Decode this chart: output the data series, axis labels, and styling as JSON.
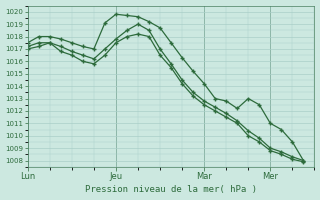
{
  "background_color": "#cce8e0",
  "grid_color": "#aacfc8",
  "line_color": "#2d6b3c",
  "ylabel": "Pression niveau de la mer( hPa )",
  "ylim": [
    1007.5,
    1020.5
  ],
  "yticks": [
    1008,
    1009,
    1010,
    1011,
    1012,
    1013,
    1014,
    1015,
    1016,
    1017,
    1018,
    1019,
    1020
  ],
  "xtick_labels": [
    "Lun",
    "Jeu",
    "Mar",
    "Mer"
  ],
  "xtick_positions": [
    0,
    8,
    16,
    22
  ],
  "xlim": [
    0,
    26
  ],
  "vline_positions": [
    0,
    8,
    16,
    22
  ],
  "series1_x": [
    0,
    1,
    2,
    3,
    4,
    5,
    6,
    7,
    8,
    9,
    10,
    11,
    12,
    13,
    14,
    15,
    16,
    17,
    18,
    19,
    20,
    21,
    22,
    23,
    24,
    25
  ],
  "series1_y": [
    1017.5,
    1018.0,
    1018.0,
    1017.8,
    1017.5,
    1017.2,
    1017.0,
    1019.1,
    1019.8,
    1019.7,
    1019.6,
    1019.2,
    1018.7,
    1017.5,
    1016.3,
    1015.2,
    1014.2,
    1013.0,
    1012.8,
    1012.2,
    1013.0,
    1012.5,
    1011.0,
    1010.5,
    1009.5,
    1008.0
  ],
  "series2_x": [
    0,
    1,
    2,
    3,
    4,
    5,
    6,
    7,
    8,
    9,
    10,
    11,
    12,
    13,
    14,
    15,
    16,
    17,
    18,
    19,
    20,
    21,
    22,
    23,
    24,
    25
  ],
  "series2_y": [
    1017.2,
    1017.5,
    1017.5,
    1017.2,
    1016.8,
    1016.5,
    1016.2,
    1017.0,
    1017.8,
    1018.5,
    1019.0,
    1018.5,
    1017.0,
    1015.8,
    1014.5,
    1013.5,
    1012.8,
    1012.3,
    1011.8,
    1011.2,
    1010.4,
    1009.8,
    1009.0,
    1008.7,
    1008.3,
    1008.0
  ],
  "series3_x": [
    0,
    1,
    2,
    3,
    4,
    5,
    6,
    7,
    8,
    9,
    10,
    11,
    12,
    13,
    14,
    15,
    16,
    17,
    18,
    19,
    20,
    21,
    22,
    23,
    24,
    25
  ],
  "series3_y": [
    1017.0,
    1017.2,
    1017.5,
    1016.8,
    1016.5,
    1016.0,
    1015.8,
    1016.5,
    1017.5,
    1018.0,
    1018.2,
    1018.0,
    1016.5,
    1015.5,
    1014.2,
    1013.2,
    1012.5,
    1012.0,
    1011.5,
    1011.0,
    1010.0,
    1009.5,
    1008.8,
    1008.5,
    1008.1,
    1007.9
  ],
  "marker": "+"
}
